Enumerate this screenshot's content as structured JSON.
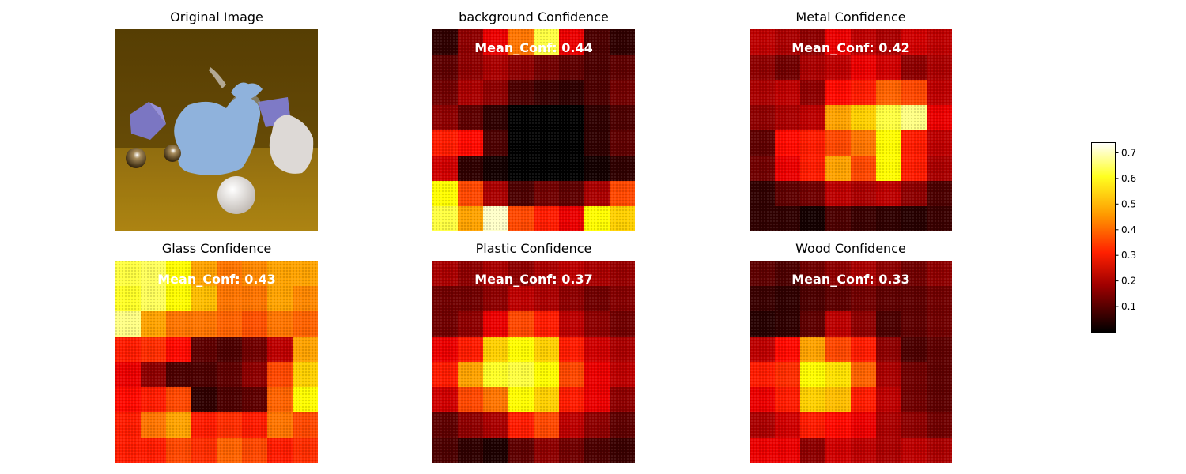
{
  "figure": {
    "background": "#ffffff",
    "colormap": "hot",
    "colors": {
      "hot_stops": [
        "#000000",
        "#e00000",
        "#ff8800",
        "#ffff00",
        "#ffffff"
      ]
    }
  },
  "panels": [
    {
      "title": "Original Image",
      "kind": "photo"
    },
    {
      "title": "background Confidence",
      "kind": "heatmap",
      "mean_label": "Mean_Conf: 0.44"
    },
    {
      "title": "Metal Confidence",
      "kind": "heatmap",
      "mean_label": "Mean_Conf: 0.42"
    },
    {
      "title": "Glass Confidence",
      "kind": "heatmap",
      "mean_label": "Mean_Conf: 0.43"
    },
    {
      "title": "Plastic Confidence",
      "kind": "heatmap",
      "mean_label": "Mean_Conf: 0.37"
    },
    {
      "title": "Wood Confidence",
      "kind": "heatmap",
      "mean_label": "Mean_Conf: 0.33"
    }
  ],
  "chart_data": {
    "type": "heatmap",
    "colorbar": {
      "range": [
        0.0,
        0.74
      ],
      "ticks": [
        0.1,
        0.2,
        0.3,
        0.4,
        0.5,
        0.6,
        0.7
      ],
      "tick_labels": [
        "0.1",
        "0.2",
        "0.3",
        "0.4",
        "0.5",
        "0.6",
        "0.7"
      ]
    },
    "grid_rows": 8,
    "grid_cols": 8,
    "maps": [
      {
        "name": "background Confidence",
        "mean": 0.44,
        "values": [
          [
            0.05,
            0.15,
            0.25,
            0.4,
            0.6,
            0.25,
            0.08,
            0.05
          ],
          [
            0.1,
            0.15,
            0.18,
            0.15,
            0.12,
            0.1,
            0.08,
            0.1
          ],
          [
            0.12,
            0.18,
            0.15,
            0.08,
            0.06,
            0.05,
            0.08,
            0.12
          ],
          [
            0.15,
            0.1,
            0.05,
            0.0,
            0.0,
            0.0,
            0.05,
            0.08
          ],
          [
            0.3,
            0.28,
            0.08,
            0.0,
            0.0,
            0.0,
            0.05,
            0.1
          ],
          [
            0.22,
            0.05,
            0.02,
            0.0,
            0.0,
            0.0,
            0.02,
            0.05
          ],
          [
            0.55,
            0.35,
            0.18,
            0.08,
            0.12,
            0.1,
            0.18,
            0.35
          ],
          [
            0.6,
            0.45,
            0.7,
            0.35,
            0.3,
            0.25,
            0.55,
            0.5
          ]
        ]
      },
      {
        "name": "Metal Confidence",
        "mean": 0.42,
        "values": [
          [
            0.2,
            0.18,
            0.15,
            0.25,
            0.2,
            0.18,
            0.22,
            0.2
          ],
          [
            0.15,
            0.12,
            0.18,
            0.2,
            0.25,
            0.22,
            0.15,
            0.18
          ],
          [
            0.18,
            0.2,
            0.15,
            0.28,
            0.3,
            0.38,
            0.35,
            0.2
          ],
          [
            0.15,
            0.18,
            0.2,
            0.45,
            0.5,
            0.6,
            0.65,
            0.25
          ],
          [
            0.1,
            0.28,
            0.3,
            0.35,
            0.4,
            0.55,
            0.3,
            0.2
          ],
          [
            0.12,
            0.25,
            0.3,
            0.45,
            0.35,
            0.55,
            0.3,
            0.18
          ],
          [
            0.05,
            0.1,
            0.12,
            0.2,
            0.18,
            0.2,
            0.15,
            0.08
          ],
          [
            0.05,
            0.05,
            0.02,
            0.08,
            0.06,
            0.05,
            0.04,
            0.06
          ]
        ]
      },
      {
        "name": "Glass Confidence",
        "mean": 0.43,
        "values": [
          [
            0.6,
            0.62,
            0.55,
            0.45,
            0.4,
            0.42,
            0.45,
            0.45
          ],
          [
            0.58,
            0.62,
            0.55,
            0.48,
            0.4,
            0.4,
            0.45,
            0.42
          ],
          [
            0.65,
            0.45,
            0.4,
            0.4,
            0.38,
            0.36,
            0.4,
            0.38
          ],
          [
            0.3,
            0.32,
            0.28,
            0.1,
            0.08,
            0.12,
            0.2,
            0.45
          ],
          [
            0.25,
            0.15,
            0.08,
            0.08,
            0.1,
            0.15,
            0.35,
            0.5
          ],
          [
            0.28,
            0.3,
            0.35,
            0.05,
            0.08,
            0.1,
            0.38,
            0.55
          ],
          [
            0.3,
            0.4,
            0.45,
            0.3,
            0.32,
            0.3,
            0.4,
            0.35
          ],
          [
            0.3,
            0.3,
            0.35,
            0.32,
            0.38,
            0.35,
            0.3,
            0.32
          ]
        ]
      },
      {
        "name": "Plastic Confidence",
        "mean": 0.37,
        "values": [
          [
            0.18,
            0.15,
            0.18,
            0.15,
            0.18,
            0.2,
            0.18,
            0.16
          ],
          [
            0.12,
            0.12,
            0.15,
            0.2,
            0.18,
            0.15,
            0.12,
            0.14
          ],
          [
            0.12,
            0.15,
            0.25,
            0.35,
            0.3,
            0.2,
            0.15,
            0.12
          ],
          [
            0.25,
            0.3,
            0.5,
            0.55,
            0.5,
            0.3,
            0.22,
            0.18
          ],
          [
            0.3,
            0.45,
            0.58,
            0.6,
            0.55,
            0.35,
            0.25,
            0.2
          ],
          [
            0.22,
            0.35,
            0.4,
            0.55,
            0.5,
            0.3,
            0.25,
            0.15
          ],
          [
            0.1,
            0.15,
            0.18,
            0.3,
            0.35,
            0.2,
            0.15,
            0.1
          ],
          [
            0.08,
            0.05,
            0.03,
            0.1,
            0.15,
            0.12,
            0.08,
            0.06
          ]
        ]
      },
      {
        "name": "Wood Confidence",
        "mean": 0.33,
        "values": [
          [
            0.1,
            0.08,
            0.12,
            0.15,
            0.18,
            0.15,
            0.12,
            0.15
          ],
          [
            0.06,
            0.05,
            0.08,
            0.1,
            0.12,
            0.1,
            0.1,
            0.12
          ],
          [
            0.04,
            0.05,
            0.1,
            0.2,
            0.15,
            0.08,
            0.1,
            0.12
          ],
          [
            0.2,
            0.28,
            0.45,
            0.35,
            0.3,
            0.15,
            0.08,
            0.1
          ],
          [
            0.3,
            0.32,
            0.55,
            0.52,
            0.38,
            0.18,
            0.12,
            0.1
          ],
          [
            0.25,
            0.3,
            0.5,
            0.48,
            0.3,
            0.2,
            0.12,
            0.1
          ],
          [
            0.18,
            0.22,
            0.3,
            0.28,
            0.25,
            0.18,
            0.15,
            0.12
          ],
          [
            0.25,
            0.25,
            0.15,
            0.22,
            0.2,
            0.18,
            0.2,
            0.18
          ]
        ]
      }
    ]
  }
}
